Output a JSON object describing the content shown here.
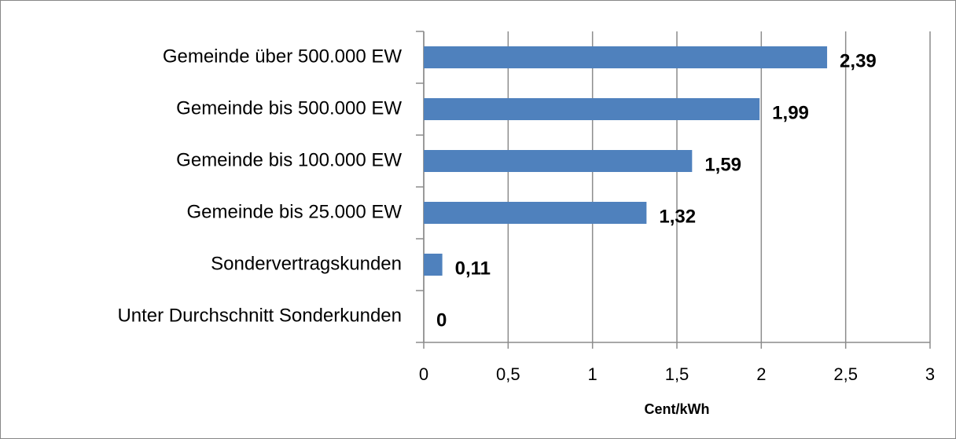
{
  "chart_data": {
    "type": "bar",
    "orientation": "horizontal",
    "categories": [
      "Gemeinde über 500.000 EW",
      "Gemeinde bis 500.000 EW",
      "Gemeinde bis 100.000 EW",
      "Gemeinde bis 25.000 EW",
      "Sondervertragskunden",
      "Unter Durchschnitt Sonderkunden"
    ],
    "values": [
      2.39,
      1.99,
      1.59,
      1.32,
      0.11,
      0
    ],
    "value_labels": [
      "2,39",
      "1,99",
      "1,59",
      "1,32",
      "0,11",
      "0"
    ],
    "color": "#4f81bd",
    "xlim": [
      0,
      3
    ],
    "xticks": [
      0,
      {
        "value": 0.5,
        "label": "0,5"
      },
      1,
      {
        "value": 1.5,
        "label": "1,5"
      },
      2,
      {
        "value": 2.5,
        "label": "2,5"
      },
      3
    ],
    "xlabel": "Cent/kWh",
    "grid": true
  }
}
